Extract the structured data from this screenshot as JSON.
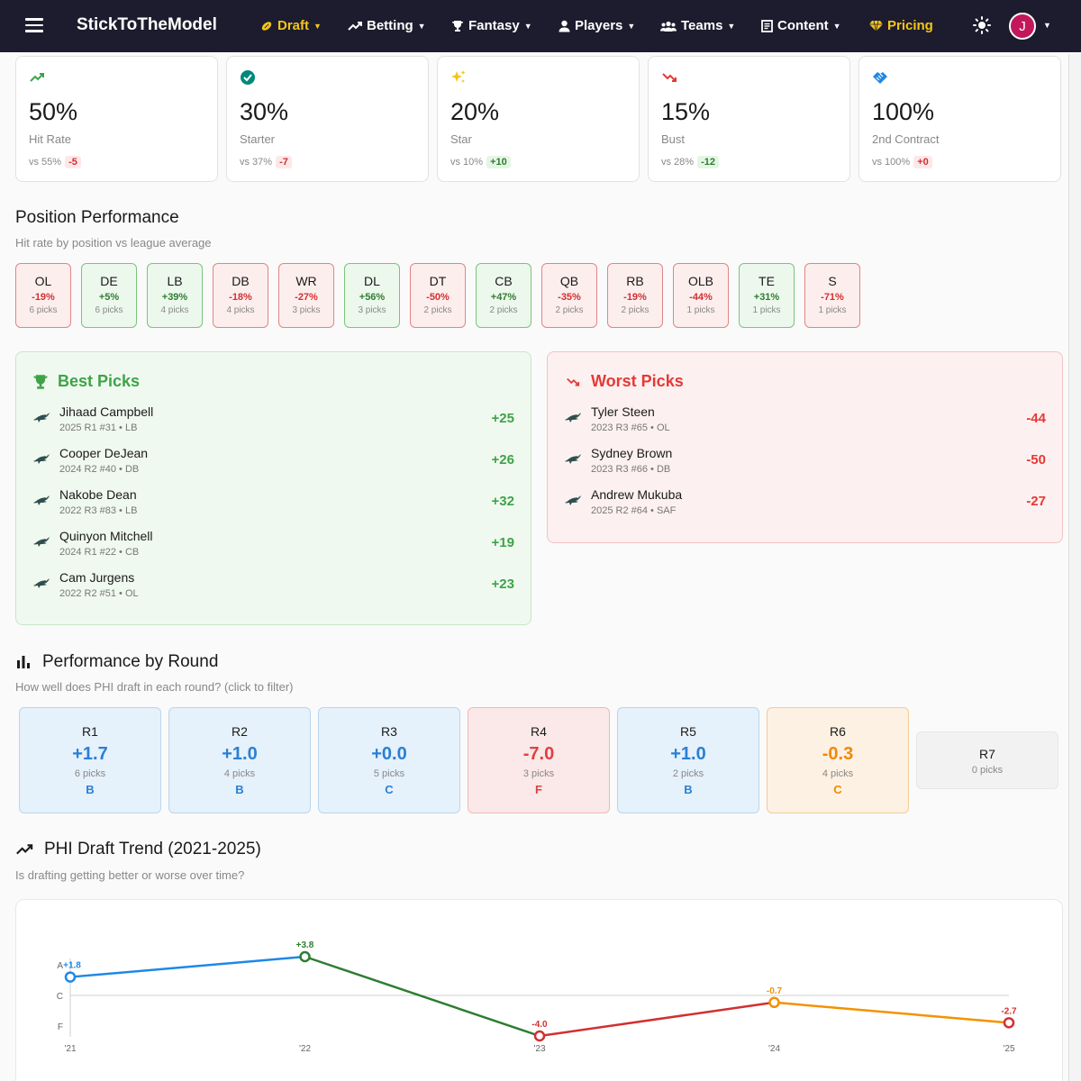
{
  "nav": {
    "brand": "StickToTheModel",
    "items": [
      {
        "label": "Draft",
        "icon": "football-icon",
        "active": true
      },
      {
        "label": "Betting",
        "icon": "trending-up-icon"
      },
      {
        "label": "Fantasy",
        "icon": "trophy-icon"
      },
      {
        "label": "Players",
        "icon": "person-icon"
      },
      {
        "label": "Teams",
        "icon": "group-icon"
      },
      {
        "label": "Content",
        "icon": "article-icon"
      },
      {
        "label": "Pricing",
        "icon": "diamond-icon",
        "active": true
      }
    ],
    "avatar_initial": "J"
  },
  "stats": [
    {
      "value": "50%",
      "label": "Hit Rate",
      "compare": "vs 55%",
      "delta": "-5",
      "trend": "neg",
      "icon": "trending-up-icon",
      "color": "#3ea348"
    },
    {
      "value": "30%",
      "label": "Starter",
      "compare": "vs 37%",
      "delta": "-7",
      "trend": "neg",
      "icon": "check-circle-icon",
      "color": "#00897b"
    },
    {
      "value": "20%",
      "label": "Star",
      "compare": "vs 10%",
      "delta": "+10",
      "trend": "pos",
      "icon": "sparkle-icon",
      "color": "#f5c518"
    },
    {
      "value": "15%",
      "label": "Bust",
      "compare": "vs 28%",
      "delta": "-12",
      "trend": "pos",
      "icon": "trending-down-icon",
      "color": "#e53935"
    },
    {
      "value": "100%",
      "label": "2nd Contract",
      "compare": "vs 100%",
      "delta": "+0",
      "trend": "neg",
      "icon": "handshake-icon",
      "color": "#1e88e5"
    }
  ],
  "position_section": {
    "title": "Position Performance",
    "subtitle": "Hit rate by position vs league average",
    "positions": [
      {
        "pos": "OL",
        "delta": "-19%",
        "picks": "6 picks",
        "trend": "neg"
      },
      {
        "pos": "DE",
        "delta": "+5%",
        "picks": "6 picks",
        "trend": "pos"
      },
      {
        "pos": "LB",
        "delta": "+39%",
        "picks": "4 picks",
        "trend": "pos"
      },
      {
        "pos": "DB",
        "delta": "-18%",
        "picks": "4 picks",
        "trend": "neg"
      },
      {
        "pos": "WR",
        "delta": "-27%",
        "picks": "3 picks",
        "trend": "neg"
      },
      {
        "pos": "DL",
        "delta": "+56%",
        "picks": "3 picks",
        "trend": "pos"
      },
      {
        "pos": "DT",
        "delta": "-50%",
        "picks": "2 picks",
        "trend": "neg"
      },
      {
        "pos": "CB",
        "delta": "+47%",
        "picks": "2 picks",
        "trend": "pos"
      },
      {
        "pos": "QB",
        "delta": "-35%",
        "picks": "2 picks",
        "trend": "neg"
      },
      {
        "pos": "RB",
        "delta": "-19%",
        "picks": "2 picks",
        "trend": "neg"
      },
      {
        "pos": "OLB",
        "delta": "-44%",
        "picks": "1 picks",
        "trend": "neg"
      },
      {
        "pos": "TE",
        "delta": "+31%",
        "picks": "1 picks",
        "trend": "pos"
      },
      {
        "pos": "S",
        "delta": "-71%",
        "picks": "1 picks",
        "trend": "neg"
      }
    ]
  },
  "best_picks": {
    "title": "Best Picks",
    "items": [
      {
        "name": "Jihaad Campbell",
        "meta": "2025 R1 #31 • LB",
        "score": "+25"
      },
      {
        "name": "Cooper DeJean",
        "meta": "2024 R2 #40 • DB",
        "score": "+26"
      },
      {
        "name": "Nakobe Dean",
        "meta": "2022 R3 #83 • LB",
        "score": "+32"
      },
      {
        "name": "Quinyon Mitchell",
        "meta": "2024 R1 #22 • CB",
        "score": "+19"
      },
      {
        "name": "Cam Jurgens",
        "meta": "2022 R2 #51 • OL",
        "score": "+23"
      }
    ]
  },
  "worst_picks": {
    "title": "Worst Picks",
    "items": [
      {
        "name": "Tyler Steen",
        "meta": "2023 R3 #65 • OL",
        "score": "-44"
      },
      {
        "name": "Sydney Brown",
        "meta": "2023 R3 #66 • DB",
        "score": "-50"
      },
      {
        "name": "Andrew Mukuba",
        "meta": "2025 R2 #64 • SAF",
        "score": "-27"
      }
    ]
  },
  "rounds_section": {
    "title": "Performance by Round",
    "subtitle": "How well does PHI draft in each round? (click to filter)",
    "rounds": [
      {
        "round": "R1",
        "value": "+1.7",
        "picks": "6 picks",
        "grade": "B",
        "tone": "blue"
      },
      {
        "round": "R2",
        "value": "+1.0",
        "picks": "4 picks",
        "grade": "B",
        "tone": "blue"
      },
      {
        "round": "R3",
        "value": "+0.0",
        "picks": "5 picks",
        "grade": "C",
        "tone": "blue"
      },
      {
        "round": "R4",
        "value": "-7.0",
        "picks": "3 picks",
        "grade": "F",
        "tone": "red"
      },
      {
        "round": "R5",
        "value": "+1.0",
        "picks": "2 picks",
        "grade": "B",
        "tone": "blue"
      },
      {
        "round": "R6",
        "value": "-0.3",
        "picks": "4 picks",
        "grade": "C",
        "tone": "org"
      },
      {
        "round": "R7",
        "value": "",
        "picks": "0 picks",
        "grade": "",
        "tone": "gray"
      }
    ]
  },
  "trend_section": {
    "title": "PHI Draft Trend (2021-2025)",
    "subtitle": "Is drafting getting better or worse over time?"
  },
  "chart_data": {
    "type": "line",
    "title": "PHI Draft Trend (2021-2025)",
    "categories": [
      "'21",
      "'22",
      "'23",
      "'24",
      "'25"
    ],
    "values": [
      1.8,
      3.8,
      -4.0,
      -0.7,
      -2.7
    ],
    "labels": [
      "+1.8",
      "+3.8",
      "-4.0",
      "-0.7",
      "-2.7"
    ],
    "point_colors": [
      "#1e88e5",
      "#2e7d32",
      "#d32f2f",
      "#f39200",
      "#d32f2f"
    ],
    "segment_colors": [
      "#1e88e5",
      "#2e7d32",
      "#d32f2f",
      "#f39200"
    ],
    "y_ticks": [
      {
        "label": "A",
        "value": 1.8
      },
      {
        "label": "C",
        "value": 0
      },
      {
        "label": "F",
        "value": -3
      }
    ],
    "ylim": [
      -4.5,
      4.5
    ]
  }
}
